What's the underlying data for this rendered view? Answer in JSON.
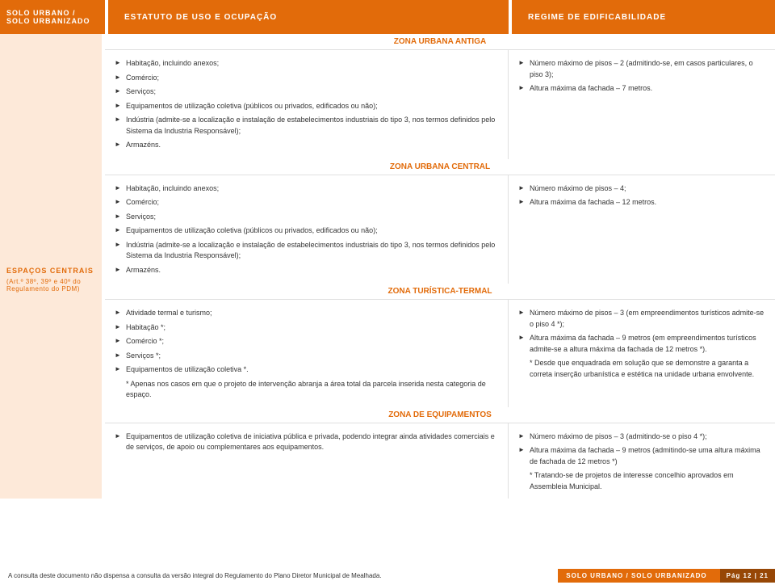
{
  "header": {
    "left_line1": "SOLO URBANO /",
    "left_line2": "SOLO URBANIZADO",
    "mid": "ESTATUTO DE USO E OCUPAÇÃO",
    "right": "REGIME DE EDIFICABILIDADE"
  },
  "sidebar": {
    "title": "ESPAÇOS CENTRAIS",
    "sub": "(Art.º 38º, 39º e 40º do Regulamento do PDM)"
  },
  "zones": {
    "antiga": {
      "title": "ZONA URBANA ANTIGA",
      "left": [
        "Habitação, incluindo anexos;",
        "Comércio;",
        "Serviços;",
        "Equipamentos de utilização coletiva (públicos ou privados, edificados ou não);",
        "Indústria (admite-se a localização e instalação de estabelecimentos industriais do tipo 3, nos termos definidos pelo Sistema da Industria Responsável);",
        "Armazéns."
      ],
      "right": [
        "Número máximo de pisos – 2 (admitindo-se, em casos particulares, o piso 3);",
        "Altura máxima da fachada – 7 metros."
      ]
    },
    "central": {
      "title": "ZONA URBANA CENTRAL",
      "left": [
        "Habitação, incluindo anexos;",
        "Comércio;",
        "Serviços;",
        "Equipamentos de utilização coletiva (públicos ou privados, edificados ou não);",
        "Indústria (admite-se a localização e instalação de estabelecimentos industriais do tipo 3, nos termos definidos pelo Sistema da Industria Responsável);",
        "Armazéns."
      ],
      "right": [
        "Número máximo de pisos – 4;",
        "Altura máxima da fachada – 12 metros."
      ]
    },
    "termal": {
      "title": "ZONA TURÍSTICA-TERMAL",
      "left": [
        "Atividade termal e turismo;",
        "Habitação *;",
        "Comércio *;",
        "Serviços *;",
        "Equipamentos de utilização coletiva *."
      ],
      "left_note": "* Apenas nos casos em que o projeto de intervenção abranja a área total da parcela inserida nesta categoria de espaço.",
      "right": [
        "Número máximo de pisos – 3 (em empreendimentos turísticos admite-se o piso 4 *);",
        "Altura máxima da fachada – 9 metros (em empreendimentos turísticos admite-se a altura máxima da fachada de 12 metros *)."
      ],
      "right_note": "* Desde que enquadrada em solução que se demonstre a garanta a correta inserção urbanística e estética na unidade urbana envolvente."
    },
    "equip": {
      "title": "ZONA DE EQUIPAMENTOS",
      "left": [
        "Equipamentos de utilização coletiva de iniciativa pública e privada, podendo integrar ainda atividades comerciais e de serviços, de apoio ou complementares aos equipamentos."
      ],
      "right": [
        "Número máximo de pisos – 3 (admitindo-se o piso 4 *);",
        "Altura máxima da fachada – 9 metros (admitindo-se uma altura máxima de fachada de 12 metros *)"
      ],
      "right_note": "* Tratando-se de projetos de interesse concelhio aprovados em Assembleia Municipal."
    }
  },
  "footer": {
    "left": "A consulta deste documento não dispensa a consulta da versão integral do Regulamento do Plano Diretor Municipal de Mealhada.",
    "right_label": "SOLO URBANO / SOLO URBANIZADO",
    "page": "Pág 12 | 21"
  },
  "colors": {
    "orange": "#e26b0a",
    "orange_light": "#fde9d9",
    "orange_dark": "#974706"
  }
}
